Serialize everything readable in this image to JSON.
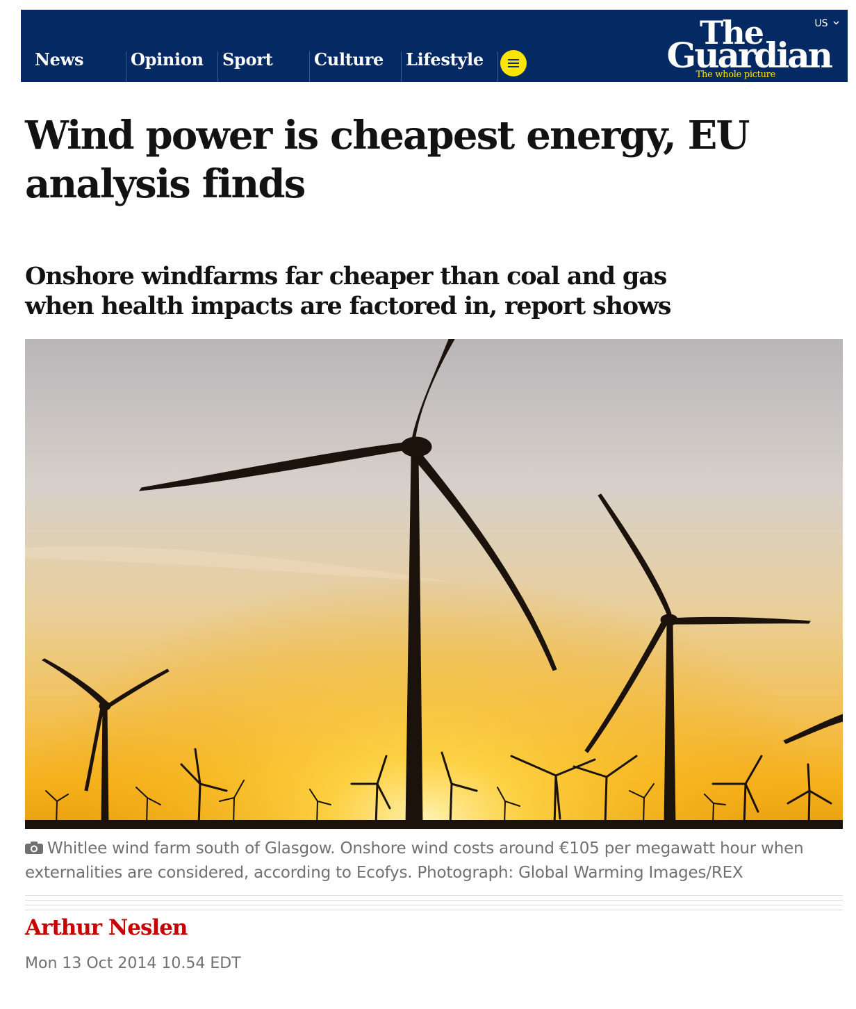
{
  "header": {
    "edition": "US",
    "nav": [
      "News",
      "Opinion",
      "Sport",
      "Culture",
      "Lifestyle"
    ],
    "logo": {
      "line1": "The",
      "line2": "Guardian",
      "tagline": "The whole picture"
    },
    "menu_icon": "hamburger-icon",
    "edition_icon": "chevron-down-icon",
    "colors": {
      "brand": "#052962",
      "accent": "#ffe500"
    }
  },
  "article": {
    "headline": "Wind power is cheapest energy, EU analysis finds",
    "standfirst": "Onshore windfarms far cheaper than coal and gas when health impacts are factored in, report shows",
    "image_caption": "Whitlee wind farm south of Glasgow. Onshore wind costs around €105 per megawatt hour when externalities are considered, according to Ecofys. Photograph: Global Warming Images/REX",
    "caption_icon": "camera-icon",
    "byline": "Arthur Neslen",
    "dateline": "Mon 13 Oct 2014 10.54 EDT",
    "colors": {
      "byline": "#c70000"
    }
  }
}
